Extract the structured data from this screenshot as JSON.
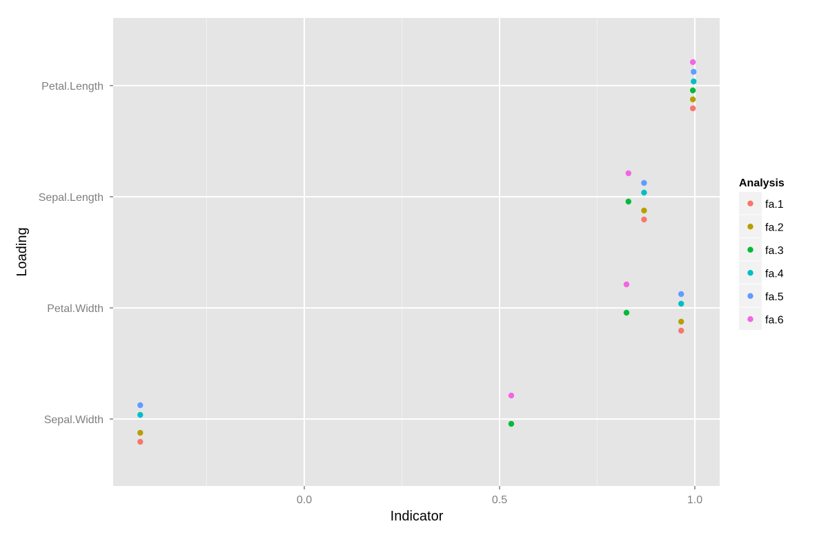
{
  "chart_data": {
    "type": "scatter",
    "title": "",
    "xlabel": "Indicator",
    "ylabel": "Loading",
    "xlim": [
      -0.49,
      1.07
    ],
    "x_ticks": [
      0.0,
      0.5,
      1.0
    ],
    "x_tick_labels": [
      "0.0",
      "0.5",
      "1.0"
    ],
    "categories": [
      "Sepal.Width",
      "Petal.Width",
      "Sepal.Length",
      "Petal.Length"
    ],
    "grid": true,
    "background": "#e5e5e5",
    "legend": {
      "title": "Analysis",
      "placement": "right"
    },
    "series": [
      {
        "name": "fa.1",
        "color": "#F8766D",
        "points": [
          {
            "y": "Petal.Length",
            "x": 0.995
          },
          {
            "y": "Sepal.Length",
            "x": 0.87
          },
          {
            "y": "Petal.Width",
            "x": 0.965
          },
          {
            "y": "Sepal.Width",
            "x": -0.42
          }
        ]
      },
      {
        "name": "fa.2",
        "color": "#B79F00",
        "points": [
          {
            "y": "Petal.Length",
            "x": 0.995
          },
          {
            "y": "Sepal.Length",
            "x": 0.87
          },
          {
            "y": "Petal.Width",
            "x": 0.965
          },
          {
            "y": "Sepal.Width",
            "x": -0.42
          }
        ]
      },
      {
        "name": "fa.3",
        "color": "#00BA38",
        "points": [
          {
            "y": "Petal.Length",
            "x": 0.995
          },
          {
            "y": "Sepal.Length",
            "x": 0.83
          },
          {
            "y": "Petal.Width",
            "x": 0.825
          },
          {
            "y": "Sepal.Width",
            "x": 0.53
          }
        ]
      },
      {
        "name": "fa.4",
        "color": "#00BFC4",
        "points": [
          {
            "y": "Petal.Length",
            "x": 0.997
          },
          {
            "y": "Sepal.Length",
            "x": 0.87
          },
          {
            "y": "Petal.Width",
            "x": 0.965
          },
          {
            "y": "Sepal.Width",
            "x": -0.42
          }
        ]
      },
      {
        "name": "fa.5",
        "color": "#619CFF",
        "points": [
          {
            "y": "Petal.Length",
            "x": 0.997
          },
          {
            "y": "Sepal.Length",
            "x": 0.87
          },
          {
            "y": "Petal.Width",
            "x": 0.965
          },
          {
            "y": "Sepal.Width",
            "x": -0.42
          }
        ]
      },
      {
        "name": "fa.6",
        "color": "#F564E3",
        "points": [
          {
            "y": "Petal.Length",
            "x": 0.995
          },
          {
            "y": "Sepal.Length",
            "x": 0.83
          },
          {
            "y": "Petal.Width",
            "x": 0.825
          },
          {
            "y": "Sepal.Width",
            "x": 0.53
          }
        ]
      }
    ]
  }
}
